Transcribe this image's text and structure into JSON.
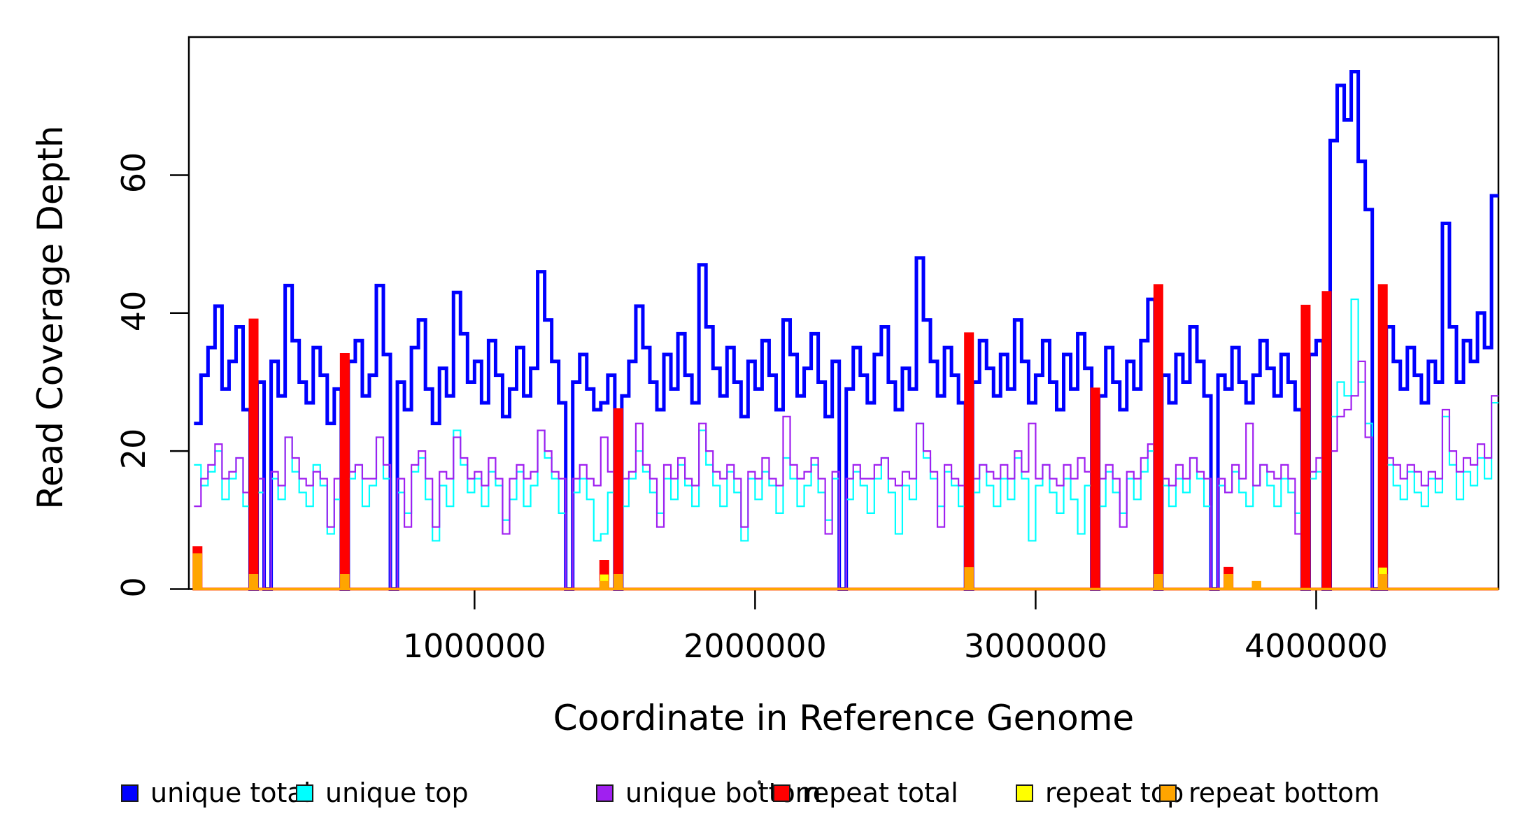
{
  "chart_data": {
    "type": "line",
    "subtype": "step-coverage",
    "title": "",
    "xlabel": "Coordinate in Reference Genome",
    "ylabel": "Read Coverage Depth",
    "grid": false,
    "legend_position": "bottom-horizontal",
    "bin_size_bp": 25000,
    "n_bins": 186,
    "xlim": [
      -18000,
      4650000
    ],
    "ylim": [
      0,
      80
    ],
    "x_ticks": [
      {
        "value": 1000000,
        "label": "1000000"
      },
      {
        "value": 2000000,
        "label": "2000000"
      },
      {
        "value": 3000000,
        "label": "3000000"
      },
      {
        "value": 4000000,
        "label": "4000000"
      }
    ],
    "y_ticks": [
      {
        "value": 0,
        "label": "0"
      },
      {
        "value": 20,
        "label": "20"
      },
      {
        "value": 40,
        "label": "40"
      },
      {
        "value": 60,
        "label": "60"
      }
    ],
    "series": [
      {
        "name": "unique total",
        "color": "#0000FF",
        "lwd": 5,
        "fill": false,
        "values": [
          24,
          31,
          35,
          41,
          29,
          33,
          38,
          26,
          0,
          30,
          0,
          33,
          28,
          44,
          36,
          30,
          27,
          35,
          31,
          24,
          29,
          0,
          33,
          36,
          28,
          31,
          44,
          34,
          0,
          30,
          26,
          35,
          39,
          29,
          24,
          32,
          28,
          43,
          37,
          30,
          33,
          27,
          36,
          31,
          25,
          29,
          35,
          28,
          32,
          46,
          39,
          33,
          27,
          0,
          30,
          34,
          29,
          26,
          27,
          31,
          0,
          28,
          33,
          41,
          35,
          30,
          26,
          34,
          29,
          37,
          31,
          27,
          47,
          38,
          32,
          28,
          35,
          30,
          25,
          33,
          29,
          36,
          31,
          26,
          39,
          34,
          28,
          32,
          37,
          30,
          25,
          33,
          0,
          29,
          35,
          31,
          27,
          34,
          38,
          30,
          26,
          32,
          29,
          48,
          39,
          33,
          28,
          35,
          31,
          27,
          0,
          30,
          36,
          32,
          28,
          34,
          29,
          39,
          33,
          27,
          31,
          36,
          30,
          26,
          34,
          29,
          37,
          32,
          0,
          28,
          35,
          30,
          26,
          33,
          29,
          36,
          42,
          0,
          31,
          27,
          34,
          30,
          38,
          33,
          28,
          0,
          31,
          29,
          35,
          30,
          27,
          31,
          36,
          32,
          28,
          34,
          30,
          26,
          0,
          34,
          36,
          0,
          65,
          73,
          68,
          75,
          62,
          55,
          0,
          0,
          38,
          33,
          29,
          35,
          31,
          27,
          33,
          30,
          53,
          38,
          30,
          36,
          33,
          40,
          35,
          57
        ]
      },
      {
        "name": "unique top",
        "color": "#00FFFF",
        "lwd": 2.2,
        "fill": false,
        "values": [
          18,
          15,
          17,
          20,
          13,
          16,
          19,
          12,
          0,
          14,
          0,
          16,
          13,
          22,
          17,
          14,
          12,
          18,
          15,
          8,
          13,
          0,
          16,
          18,
          12,
          15,
          22,
          16,
          0,
          14,
          11,
          17,
          19,
          13,
          7,
          15,
          12,
          23,
          18,
          14,
          16,
          12,
          17,
          15,
          10,
          13,
          17,
          12,
          15,
          23,
          19,
          16,
          11,
          0,
          14,
          16,
          13,
          7,
          8,
          14,
          0,
          12,
          16,
          20,
          17,
          14,
          11,
          16,
          13,
          18,
          15,
          12,
          23,
          18,
          15,
          12,
          17,
          14,
          7,
          16,
          13,
          17,
          15,
          11,
          19,
          16,
          12,
          15,
          18,
          14,
          10,
          16,
          0,
          13,
          17,
          15,
          11,
          16,
          19,
          14,
          8,
          15,
          13,
          24,
          19,
          16,
          12,
          17,
          15,
          12,
          0,
          14,
          18,
          15,
          12,
          16,
          13,
          19,
          16,
          7,
          15,
          18,
          14,
          11,
          16,
          13,
          8,
          15,
          0,
          12,
          17,
          14,
          11,
          16,
          13,
          17,
          20,
          2,
          15,
          12,
          16,
          14,
          19,
          16,
          12,
          0,
          15,
          14,
          17,
          14,
          12,
          15,
          18,
          15,
          12,
          16,
          14,
          11,
          0,
          16,
          17,
          0,
          25,
          30,
          28,
          42,
          30,
          24,
          0,
          0,
          18,
          15,
          13,
          17,
          14,
          12,
          16,
          14,
          25,
          18,
          13,
          17,
          15,
          19,
          16,
          27
        ]
      },
      {
        "name": "unique bottom",
        "color": "#A020F0",
        "lwd": 2.2,
        "fill": false,
        "values": [
          12,
          16,
          18,
          21,
          16,
          17,
          19,
          14,
          0,
          16,
          0,
          17,
          15,
          22,
          19,
          16,
          15,
          17,
          16,
          9,
          16,
          0,
          17,
          18,
          16,
          16,
          22,
          18,
          0,
          16,
          9,
          18,
          20,
          16,
          9,
          17,
          16,
          22,
          19,
          16,
          17,
          15,
          19,
          16,
          8,
          16,
          18,
          16,
          17,
          23,
          20,
          17,
          16,
          0,
          16,
          18,
          16,
          15,
          22,
          17,
          0,
          16,
          17,
          24,
          18,
          16,
          9,
          18,
          16,
          19,
          16,
          15,
          24,
          20,
          17,
          16,
          18,
          16,
          9,
          17,
          16,
          19,
          16,
          15,
          25,
          18,
          16,
          17,
          19,
          16,
          8,
          17,
          0,
          16,
          18,
          16,
          16,
          18,
          19,
          16,
          15,
          17,
          16,
          24,
          20,
          17,
          9,
          18,
          16,
          15,
          0,
          16,
          18,
          17,
          16,
          18,
          16,
          20,
          17,
          24,
          16,
          18,
          16,
          15,
          18,
          16,
          19,
          17,
          0,
          16,
          18,
          16,
          9,
          17,
          16,
          19,
          21,
          0,
          16,
          15,
          18,
          16,
          19,
          17,
          16,
          0,
          16,
          14,
          18,
          16,
          24,
          15,
          18,
          17,
          16,
          18,
          16,
          8,
          0,
          17,
          19,
          0,
          20,
          25,
          26,
          28,
          33,
          22,
          0,
          0,
          19,
          18,
          16,
          18,
          17,
          15,
          17,
          16,
          26,
          20,
          17,
          19,
          18,
          21,
          19,
          28
        ]
      },
      {
        "name": "repeat total",
        "color": "#FF0000",
        "lwd": 4,
        "fill": true,
        "sparse": {
          "0": 6,
          "8": 39,
          "21": 34,
          "58": 4,
          "60": 26,
          "110": 37,
          "128": 29,
          "137": 44,
          "147": 3,
          "158": 41,
          "161": 43,
          "169": 44
        }
      },
      {
        "name": "repeat top",
        "color": "#FFFF00",
        "lwd": 2.2,
        "fill": true,
        "sparse": {
          "0": 2,
          "8": 2,
          "58": 2,
          "110": 3,
          "137": 2,
          "147": 1,
          "169": 3
        }
      },
      {
        "name": "repeat bottom",
        "color": "#FFA500",
        "lwd": 3.5,
        "fill": true,
        "sparse": {
          "0": 5,
          "8": 2,
          "21": 2,
          "58": 1,
          "60": 2,
          "110": 3,
          "137": 2,
          "147": 2,
          "151": 1,
          "169": 2
        }
      }
    ]
  },
  "legend": {
    "items": [
      {
        "label": "unique total",
        "color": "#0000FF"
      },
      {
        "label": "unique top",
        "color": "#00FFFF"
      },
      {
        "label": "unique bottom",
        "color": "#A020F0"
      },
      {
        "label": "repeat total",
        "color": "#FF0000"
      },
      {
        "label": "repeat top",
        "color": "#FFFF00"
      },
      {
        "label": "repeat bottom",
        "color": "#FFA500"
      }
    ]
  },
  "frame_color": "#000000"
}
